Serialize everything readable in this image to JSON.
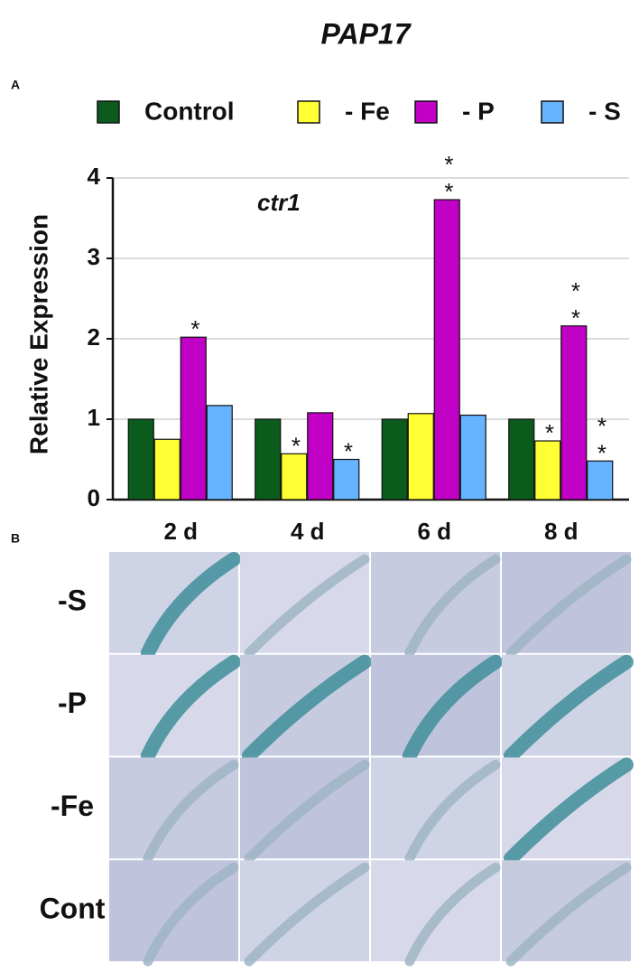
{
  "chart_data": {
    "type": "bar",
    "title": "PAP17",
    "panel_label": "A",
    "annotation": "ctr1",
    "y_label": "Relative Expression",
    "categories": [
      "2 d",
      "4 d",
      "6 d",
      "8 d"
    ],
    "series": [
      {
        "name": "Control",
        "color": "#0b5c1c",
        "values": [
          1,
          1,
          1,
          1
        ],
        "significance": [
          null,
          null,
          null,
          null
        ]
      },
      {
        "name": "- Fe",
        "color": "#ffff33",
        "values": [
          0.75,
          0.57,
          1.07,
          0.73
        ],
        "significance": [
          null,
          "*",
          null,
          "*"
        ]
      },
      {
        "name": "- P",
        "color": "#c000c4",
        "values": [
          2.02,
          1.08,
          3.73,
          2.16
        ],
        "significance": [
          "*",
          null,
          "**",
          "**"
        ]
      },
      {
        "name": "- S",
        "color": "#66b3ff",
        "values": [
          1.17,
          0.5,
          1.05,
          0.48
        ],
        "significance": [
          null,
          "*",
          null,
          "**"
        ]
      }
    ],
    "ylim": [
      0,
      4
    ],
    "yticks": [
      0,
      1,
      2,
      3,
      4
    ],
    "grid": true
  },
  "image_panel": {
    "panel_label": "B",
    "row_labels": [
      "-S",
      "-P",
      "-Fe",
      "Cont"
    ]
  }
}
